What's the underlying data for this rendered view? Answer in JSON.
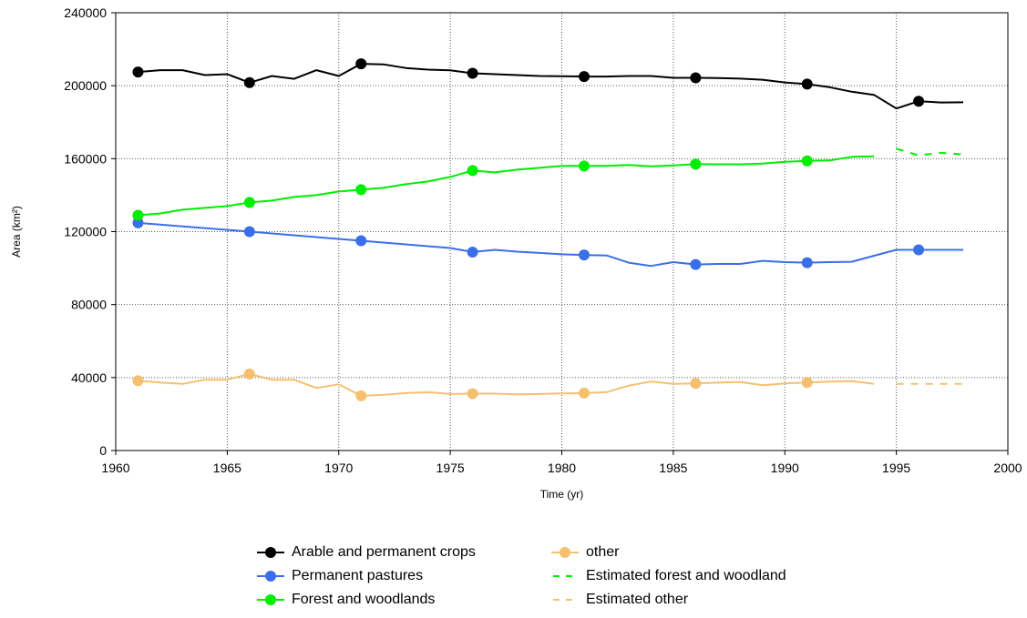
{
  "chart_data": {
    "type": "line",
    "xlabel": "Time (yr)",
    "ylabel": "Area (km²)",
    "xlim": [
      1960,
      2000
    ],
    "ylim": [
      0,
      240000
    ],
    "xticks": [
      "1960",
      "1965",
      "1970",
      "1975",
      "1980",
      "1985",
      "1990",
      "1995",
      "2000"
    ],
    "yticks": [
      "0",
      "40000",
      "80000",
      "120000",
      "160000",
      "200000",
      "240000"
    ],
    "grid": true,
    "legend_position": "bottom",
    "series": [
      {
        "name": "Arable and permanent crops",
        "color": "#000000",
        "style": "solid",
        "x": [
          1961,
          1962,
          1963,
          1964,
          1965,
          1966,
          1967,
          1968,
          1969,
          1970,
          1971,
          1972,
          1973,
          1974,
          1975,
          1976,
          1977,
          1978,
          1979,
          1980,
          1981,
          1982,
          1983,
          1984,
          1985,
          1986,
          1987,
          1988,
          1989,
          1990,
          1991,
          1992,
          1993,
          1994,
          1995,
          1996,
          1997,
          1998
        ],
        "y": [
          207500,
          208500,
          208500,
          205800,
          206300,
          201700,
          205300,
          203800,
          208500,
          205300,
          212000,
          211700,
          209700,
          208800,
          208400,
          206800,
          206300,
          205800,
          205300,
          205200,
          205000,
          205000,
          205300,
          205300,
          204300,
          204300,
          204200,
          203900,
          203300,
          201800,
          200900,
          199200,
          196700,
          195000,
          187500,
          191500,
          190800,
          190900
        ],
        "markers": [
          1961,
          1966,
          1971,
          1976,
          1981,
          1986,
          1991,
          1996
        ]
      },
      {
        "name": "Permanent pastures",
        "color": "#3b6fe8",
        "style": "solid",
        "x": [
          1961,
          1966,
          1971,
          1975,
          1976,
          1977,
          1978,
          1979,
          1980,
          1981,
          1982,
          1983,
          1984,
          1985,
          1986,
          1987,
          1988,
          1989,
          1990,
          1991,
          1992,
          1993,
          1994,
          1995,
          1996,
          1997,
          1998
        ],
        "y": [
          124800,
          120000,
          115000,
          111000,
          108800,
          110000,
          109000,
          108300,
          107600,
          107200,
          107000,
          103000,
          101200,
          103300,
          102000,
          102300,
          102300,
          104000,
          103300,
          103000,
          103300,
          103500,
          106800,
          110000,
          110000,
          110000,
          110000
        ],
        "markers": [
          1961,
          1966,
          1971,
          1976,
          1981,
          1986,
          1991,
          1996
        ]
      },
      {
        "name": "Forest and woodlands",
        "color": "#00ee00",
        "style": "solid",
        "x": [
          1961,
          1962,
          1963,
          1964,
          1965,
          1966,
          1967,
          1968,
          1969,
          1970,
          1971,
          1972,
          1973,
          1974,
          1975,
          1976,
          1977,
          1978,
          1979,
          1980,
          1981,
          1982,
          1983,
          1984,
          1985,
          1986,
          1987,
          1988,
          1989,
          1990,
          1991,
          1992,
          1993,
          1994
        ],
        "y": [
          129000,
          130000,
          132000,
          133000,
          134000,
          136000,
          137000,
          139000,
          140000,
          142000,
          143000,
          144000,
          146000,
          147500,
          150000,
          153500,
          152500,
          154000,
          155000,
          156000,
          156000,
          156000,
          156500,
          155800,
          156300,
          157000,
          156900,
          156900,
          157300,
          158300,
          158800,
          159000,
          161000,
          161300
        ],
        "markers": [
          1961,
          1966,
          1971,
          1976,
          1981,
          1986,
          1991
        ]
      },
      {
        "name": "other",
        "color": "#f4c070",
        "style": "solid",
        "x": [
          1961,
          1962,
          1963,
          1964,
          1965,
          1966,
          1967,
          1968,
          1969,
          1970,
          1971,
          1972,
          1973,
          1974,
          1975,
          1976,
          1977,
          1978,
          1979,
          1980,
          1981,
          1982,
          1983,
          1984,
          1985,
          1986,
          1987,
          1988,
          1989,
          1990,
          1991,
          1992,
          1993,
          1994
        ],
        "y": [
          38300,
          37300,
          36500,
          38800,
          38800,
          42000,
          38800,
          38800,
          34300,
          36300,
          30000,
          30500,
          31500,
          32000,
          31000,
          31200,
          31200,
          30800,
          31000,
          31300,
          31500,
          32000,
          35600,
          37800,
          36500,
          36800,
          37200,
          37500,
          35800,
          36800,
          37300,
          37800,
          38000,
          36500
        ],
        "markers": [
          1961,
          1966,
          1971,
          1976,
          1981,
          1986,
          1991
        ]
      },
      {
        "name": "Estimated forest and woodland",
        "color": "#00ee00",
        "style": "dashed",
        "x": [
          1995,
          1996,
          1997,
          1998
        ],
        "y": [
          165500,
          161800,
          163200,
          162300
        ],
        "markers": []
      },
      {
        "name": "Estimated other",
        "color": "#f4c070",
        "style": "dashed",
        "x": [
          1995,
          1996,
          1997,
          1998
        ],
        "y": [
          36500,
          36500,
          36500,
          36500
        ],
        "markers": []
      }
    ]
  }
}
